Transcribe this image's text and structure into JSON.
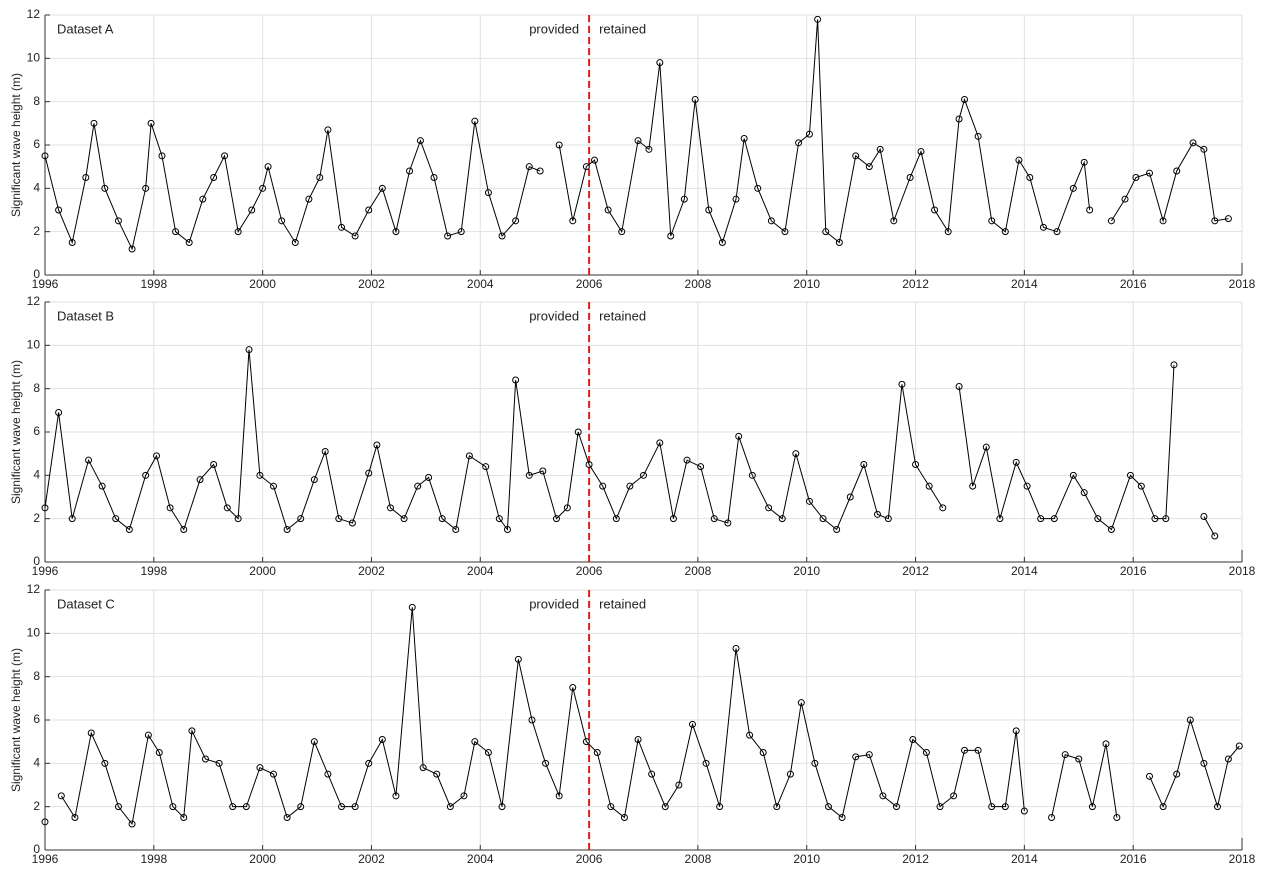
{
  "chart_data": [
    {
      "type": "line",
      "title": "Dataset A",
      "ylabel": "Significant wave height (m)",
      "annotations": [
        "provided",
        "retained"
      ],
      "vline": 2006,
      "vline_color": "#e0201b",
      "color": "#000000",
      "grid": true,
      "xlim": [
        1996,
        2018
      ],
      "xticks": [
        1996,
        1998,
        2000,
        2002,
        2004,
        2006,
        2008,
        2010,
        2012,
        2014,
        2016,
        2018
      ],
      "ylim": [
        0,
        12
      ],
      "yticks": [
        0,
        2,
        4,
        6,
        8,
        10,
        12
      ],
      "x": [
        1996.0,
        1996.25,
        1996.5,
        1996.75,
        1996.9,
        1997.1,
        1997.35,
        1997.6,
        1997.85,
        1997.95,
        1998.15,
        1998.4,
        1998.65,
        1998.9,
        1999.1,
        1999.3,
        1999.55,
        1999.8,
        2000.0,
        2000.1,
        2000.35,
        2000.6,
        2000.85,
        2001.05,
        2001.2,
        2001.45,
        2001.7,
        2001.95,
        2002.2,
        2002.45,
        2002.7,
        2002.9,
        2003.15,
        2003.4,
        2003.65,
        2003.9,
        2004.15,
        2004.4,
        2004.65,
        2004.9,
        2005.1,
        2005.25,
        2005.45,
        2005.7,
        2005.95,
        2006.1,
        2006.35,
        2006.6,
        2006.9,
        2007.1,
        2007.3,
        2007.5,
        2007.75,
        2007.95,
        2008.2,
        2008.45,
        2008.7,
        2008.85,
        2009.1,
        2009.35,
        2009.6,
        2009.85,
        2010.05,
        2010.2,
        2010.35,
        2010.6,
        2010.9,
        2011.15,
        2011.35,
        2011.6,
        2011.9,
        2012.1,
        2012.35,
        2012.6,
        2012.8,
        2012.9,
        2013.15,
        2013.4,
        2013.65,
        2013.9,
        2014.1,
        2014.35,
        2014.6,
        2014.9,
        2015.1,
        2015.2,
        2015.4,
        2015.6,
        2015.85,
        2016.05,
        2016.3,
        2016.55,
        2016.8,
        2017.1,
        2017.3,
        2017.5,
        2017.75
      ],
      "values": [
        5.5,
        3.0,
        1.5,
        4.5,
        7.0,
        4.0,
        2.5,
        1.2,
        4.0,
        7.0,
        5.5,
        2.0,
        1.5,
        3.5,
        4.5,
        5.5,
        2.0,
        3.0,
        4.0,
        5.0,
        2.5,
        1.5,
        3.5,
        4.5,
        6.7,
        2.2,
        1.8,
        3.0,
        4.0,
        2.0,
        4.8,
        6.2,
        4.5,
        1.8,
        2.0,
        7.1,
        3.8,
        1.8,
        2.5,
        5.0,
        4.8,
        null,
        6.0,
        2.5,
        5.0,
        5.3,
        3.0,
        2.0,
        6.2,
        5.8,
        9.8,
        1.8,
        3.5,
        8.1,
        3.0,
        1.5,
        3.5,
        6.3,
        4.0,
        2.5,
        2.0,
        6.1,
        6.5,
        11.8,
        2.0,
        1.5,
        5.5,
        5.0,
        5.8,
        2.5,
        4.5,
        5.7,
        3.0,
        2.0,
        7.2,
        8.1,
        6.4,
        2.5,
        2.0,
        5.3,
        4.5,
        2.2,
        2.0,
        4.0,
        5.2,
        3.0,
        null,
        2.5,
        3.5,
        4.5,
        4.7,
        2.5,
        4.8,
        6.1,
        5.8,
        2.5,
        2.6
      ]
    },
    {
      "type": "line",
      "title": "Dataset B",
      "ylabel": "Significant wave height (m)",
      "annotations": [
        "provided",
        "retained"
      ],
      "vline": 2006,
      "vline_color": "#e0201b",
      "color": "#000000",
      "grid": true,
      "xlim": [
        1996,
        2018
      ],
      "xticks": [
        1996,
        1998,
        2000,
        2002,
        2004,
        2006,
        2008,
        2010,
        2012,
        2014,
        2016,
        2018
      ],
      "ylim": [
        0,
        12
      ],
      "yticks": [
        0,
        2,
        4,
        6,
        8,
        10,
        12
      ],
      "x": [
        1996.0,
        1996.25,
        1996.5,
        1996.8,
        1997.05,
        1997.3,
        1997.55,
        1997.85,
        1998.05,
        1998.3,
        1998.55,
        1998.85,
        1999.1,
        1999.35,
        1999.55,
        1999.75,
        1999.95,
        2000.2,
        2000.45,
        2000.7,
        2000.95,
        2001.15,
        2001.4,
        2001.65,
        2001.95,
        2002.1,
        2002.35,
        2002.6,
        2002.85,
        2003.05,
        2003.3,
        2003.55,
        2003.8,
        2004.1,
        2004.35,
        2004.5,
        2004.65,
        2004.9,
        2005.15,
        2005.4,
        2005.6,
        2005.8,
        2006.0,
        2006.25,
        2006.5,
        2006.75,
        2007.0,
        2007.3,
        2007.55,
        2007.8,
        2008.05,
        2008.3,
        2008.55,
        2008.75,
        2009.0,
        2009.3,
        2009.55,
        2009.8,
        2010.05,
        2010.3,
        2010.55,
        2010.8,
        2011.05,
        2011.3,
        2011.5,
        2011.75,
        2012.0,
        2012.25,
        2012.5,
        2012.65,
        2012.8,
        2013.05,
        2013.3,
        2013.55,
        2013.85,
        2014.05,
        2014.3,
        2014.55,
        2014.9,
        2015.1,
        2015.35,
        2015.6,
        2015.95,
        2016.15,
        2016.4,
        2016.6,
        2016.75,
        2017.0,
        2017.3,
        2017.5
      ],
      "values": [
        2.5,
        6.9,
        2.0,
        4.7,
        3.5,
        2.0,
        1.5,
        4.0,
        4.9,
        2.5,
        1.5,
        3.8,
        4.5,
        2.5,
        2.0,
        9.8,
        4.0,
        3.5,
        1.5,
        2.0,
        3.8,
        5.1,
        2.0,
        1.8,
        4.1,
        5.4,
        2.5,
        2.0,
        3.5,
        3.9,
        2.0,
        1.5,
        4.9,
        4.4,
        2.0,
        1.5,
        8.4,
        4.0,
        4.2,
        2.0,
        2.5,
        6.0,
        4.5,
        3.5,
        2.0,
        3.5,
        4.0,
        5.5,
        2.0,
        4.7,
        4.4,
        2.0,
        1.8,
        5.8,
        4.0,
        2.5,
        2.0,
        5.0,
        2.8,
        2.0,
        1.5,
        3.0,
        4.5,
        2.2,
        2.0,
        8.2,
        4.5,
        3.5,
        2.5,
        null,
        8.1,
        3.5,
        5.3,
        2.0,
        4.6,
        3.5,
        2.0,
        2.0,
        4.0,
        3.2,
        2.0,
        1.5,
        4.0,
        3.5,
        2.0,
        2.0,
        9.1,
        null,
        2.1,
        1.2
      ]
    },
    {
      "type": "line",
      "title": "Dataset C",
      "ylabel": "Significant wave height (m)",
      "annotations": [
        "provided",
        "retained"
      ],
      "vline": 2006,
      "vline_color": "#e0201b",
      "color": "#000000",
      "grid": true,
      "xlim": [
        1996,
        2018
      ],
      "xticks": [
        1996,
        1998,
        2000,
        2002,
        2004,
        2006,
        2008,
        2010,
        2012,
        2014,
        2016,
        2018
      ],
      "ylim": [
        0,
        12
      ],
      "yticks": [
        0,
        2,
        4,
        6,
        8,
        10,
        12
      ],
      "x": [
        1996.0,
        1996.15,
        1996.3,
        1996.55,
        1996.85,
        1997.1,
        1997.35,
        1997.6,
        1997.9,
        1998.1,
        1998.35,
        1998.55,
        1998.7,
        1998.95,
        1999.2,
        1999.45,
        1999.7,
        1999.95,
        2000.2,
        2000.45,
        2000.7,
        2000.95,
        2001.2,
        2001.45,
        2001.7,
        2001.95,
        2002.2,
        2002.45,
        2002.75,
        2002.95,
        2003.2,
        2003.45,
        2003.7,
        2003.9,
        2004.15,
        2004.4,
        2004.7,
        2004.95,
        2005.2,
        2005.45,
        2005.7,
        2005.95,
        2006.15,
        2006.4,
        2006.65,
        2006.9,
        2007.15,
        2007.4,
        2007.65,
        2007.9,
        2008.15,
        2008.4,
        2008.7,
        2008.95,
        2009.2,
        2009.45,
        2009.7,
        2009.9,
        2010.15,
        2010.4,
        2010.65,
        2010.9,
        2011.15,
        2011.4,
        2011.65,
        2011.95,
        2012.2,
        2012.45,
        2012.7,
        2012.9,
        2013.15,
        2013.4,
        2013.65,
        2013.85,
        2014.0,
        2014.25,
        2014.5,
        2014.75,
        2015.0,
        2015.25,
        2015.5,
        2015.7,
        2016.0,
        2016.3,
        2016.55,
        2016.8,
        2017.05,
        2017.3,
        2017.55,
        2017.75,
        2017.95
      ],
      "values": [
        1.3,
        null,
        2.5,
        1.5,
        5.4,
        4.0,
        2.0,
        1.2,
        5.3,
        4.5,
        2.0,
        1.5,
        5.5,
        4.2,
        4.0,
        2.0,
        2.0,
        3.8,
        3.5,
        1.5,
        2.0,
        5.0,
        3.5,
        2.0,
        2.0,
        4.0,
        5.1,
        2.5,
        11.2,
        3.8,
        3.5,
        2.0,
        2.5,
        5.0,
        4.5,
        2.0,
        8.8,
        6.0,
        4.0,
        2.5,
        7.5,
        5.0,
        4.5,
        2.0,
        1.5,
        5.1,
        3.5,
        2.0,
        3.0,
        5.8,
        4.0,
        2.0,
        9.3,
        5.3,
        4.5,
        2.0,
        3.5,
        6.8,
        4.0,
        2.0,
        1.5,
        4.3,
        4.4,
        2.5,
        2.0,
        5.1,
        4.5,
        2.0,
        2.5,
        4.6,
        4.6,
        2.0,
        2.0,
        5.5,
        1.8,
        null,
        1.5,
        4.4,
        4.2,
        2.0,
        4.9,
        1.5,
        null,
        3.4,
        2.0,
        3.5,
        6.0,
        4.0,
        2.0,
        4.2,
        4.8
      ]
    }
  ]
}
